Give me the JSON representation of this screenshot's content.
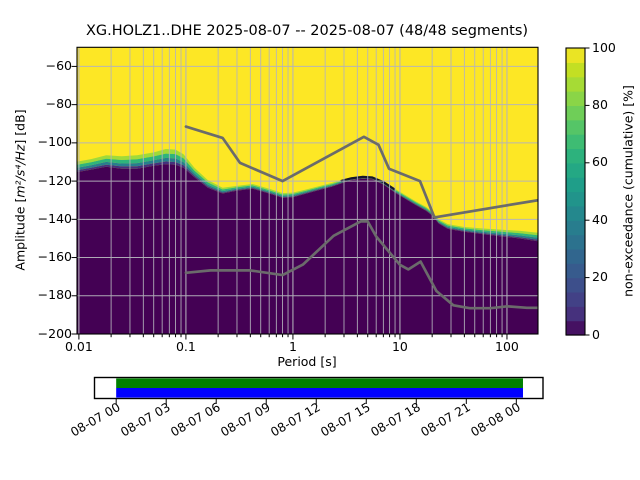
{
  "title": "XG.HOLZ1..DHE   2025-08-07 -- 2025-08-07  (48/48 segments)",
  "axes": {
    "xlabel": "Period [s]",
    "ylabel_prefix": "Amplitude [",
    "ylabel_math": "m²/s⁴/Hz",
    "ylabel_suffix": "] [dB]",
    "x_tick_labels": [
      "0.01",
      "0.1",
      "1",
      "10",
      "100"
    ],
    "x_tick_values": [
      0.01,
      0.1,
      1,
      10,
      100
    ],
    "y_tick_labels": [
      "−60",
      "−80",
      "−100",
      "−120",
      "−140",
      "−160",
      "−180",
      "−200"
    ],
    "y_tick_values": [
      -60,
      -80,
      -100,
      -120,
      -140,
      -160,
      -180,
      -200
    ]
  },
  "colorbar": {
    "label": "non-exceedance (cumulative) [%]",
    "tick_labels": [
      "0",
      "20",
      "40",
      "60",
      "80",
      "100"
    ],
    "tick_values": [
      0,
      20,
      40,
      60,
      80,
      100
    ],
    "lim": [
      0,
      100
    ],
    "colormap": "viridis"
  },
  "colors": {
    "cmap_top_yellow": "#fde725",
    "cmap_bottom_purple": "#440154",
    "band_strips": [
      "#a0da39",
      "#2fb47c",
      "#277f8e",
      "#45317e"
    ],
    "mode_line": "#15152d",
    "grid": "#b4b4bc",
    "noise_model_line": "#6b6b6b",
    "spine": "#000000",
    "viridis_anchors": [
      "#440154",
      "#46327e",
      "#3f4a8a",
      "#365c8d",
      "#2e6e8e",
      "#277f8e",
      "#21918c",
      "#1fa188",
      "#2ab07f",
      "#44bf70",
      "#6ccd5a",
      "#95d840",
      "#c2df23",
      "#fde725"
    ],
    "timeline_psd_green": "#008000",
    "timeline_data_blue": "#0000ff"
  },
  "chart_data": {
    "type": "heatmap",
    "title": "XG.HOLZ1..DHE   2025-08-07 -- 2025-08-07  (48/48 segments)",
    "xlabel": "Period [s]",
    "ylabel": "Amplitude [m²/s⁴/Hz] [dB]",
    "xscale": "log",
    "xlim": [
      0.0096,
      195
    ],
    "ylim": [
      -200,
      -50
    ],
    "grid": "both-x-major-y",
    "colorbar_label": "non-exceedance (cumulative) [%]",
    "colorbar_lim": [
      0,
      100
    ],
    "description": "Cumulative PPSD: non-exceedance percentage is ~100% (yellow) above the spectral boundary and ~0% (dark purple) below it; thin viridis gradient band along the boundary.",
    "boundary_top_band": [
      [
        0.0096,
        -109.8,
        5.5
      ],
      [
        0.013,
        -108.5,
        5.5
      ],
      [
        0.018,
        -106.5,
        6
      ],
      [
        0.025,
        -107,
        6.5
      ],
      [
        0.035,
        -106.5,
        7
      ],
      [
        0.05,
        -105,
        7
      ],
      [
        0.065,
        -103.2,
        8
      ],
      [
        0.08,
        -103.5,
        8
      ],
      [
        0.095,
        -106,
        7
      ],
      [
        0.12,
        -113,
        5
      ],
      [
        0.16,
        -119.5,
        4
      ],
      [
        0.22,
        -123.5,
        3
      ],
      [
        0.3,
        -122.5,
        2.5
      ],
      [
        0.42,
        -121.5,
        2.5
      ],
      [
        0.6,
        -124,
        2.5
      ],
      [
        0.8,
        -126.3,
        2.5
      ],
      [
        1.0,
        -126,
        2.5
      ],
      [
        1.3,
        -124.5,
        2.2
      ],
      [
        1.8,
        -122.5,
        2
      ],
      [
        2.3,
        -121,
        2
      ],
      [
        2.8,
        -119.5,
        1.8
      ],
      [
        3.5,
        -118,
        1.5
      ],
      [
        4.5,
        -117.3,
        1.5
      ],
      [
        5.5,
        -117.6,
        1.5
      ],
      [
        7,
        -120,
        1.8
      ],
      [
        9,
        -124,
        2
      ],
      [
        11,
        -127,
        2
      ],
      [
        14,
        -130.5,
        2
      ],
      [
        17.5,
        -133.5,
        2
      ],
      [
        20,
        -136,
        2
      ],
      [
        23,
        -140,
        2.2
      ],
      [
        28,
        -142.5,
        2.5
      ],
      [
        40,
        -144,
        2.5
      ],
      [
        60,
        -144.8,
        3
      ],
      [
        90,
        -145.5,
        3.5
      ],
      [
        130,
        -146,
        4
      ],
      [
        195,
        -147,
        4.5
      ]
    ],
    "mode_line_period_range": [
      2.6,
      9.5
    ],
    "noise_models": {
      "nhnm": [
        [
          0.1,
          -91.5
        ],
        [
          0.22,
          -97.4
        ],
        [
          0.32,
          -110.5
        ],
        [
          0.8,
          -120.0
        ],
        [
          4.6,
          -96.8
        ],
        [
          6.3,
          -101.0
        ],
        [
          7.9,
          -113.5
        ],
        [
          15.4,
          -120.0
        ],
        [
          21.0,
          -139.0
        ],
        [
          195,
          -130.0
        ]
      ],
      "nlnm": [
        [
          0.1,
          -168.0
        ],
        [
          0.17,
          -166.7
        ],
        [
          0.4,
          -166.7
        ],
        [
          0.8,
          -169.2
        ],
        [
          1.24,
          -163.7
        ],
        [
          2.4,
          -148.6
        ],
        [
          4.3,
          -141.1
        ],
        [
          5.0,
          -141.1
        ],
        [
          6.0,
          -149.0
        ],
        [
          10.0,
          -163.8
        ],
        [
          12.0,
          -166.2
        ],
        [
          15.6,
          -162.1
        ],
        [
          21.9,
          -177.5
        ],
        [
          31.6,
          -185.0
        ],
        [
          45.0,
          -186.5
        ],
        [
          70.0,
          -186.5
        ],
        [
          101.0,
          -185.5
        ],
        [
          154.0,
          -186.3
        ],
        [
          195.0,
          -186.3
        ]
      ]
    },
    "timeline": {
      "tick_labels": [
        "08-07 00",
        "08-07 03",
        "08-07 06",
        "08-07 09",
        "08-07 12",
        "08-07 15",
        "08-07 18",
        "08-07 21",
        "08-08 00"
      ],
      "tick_hours": [
        0,
        3,
        6,
        9,
        12,
        15,
        18,
        21,
        24
      ],
      "axis_hours": [
        -1.3,
        25.6
      ],
      "coverage_hours": [
        0,
        24.4
      ]
    }
  }
}
